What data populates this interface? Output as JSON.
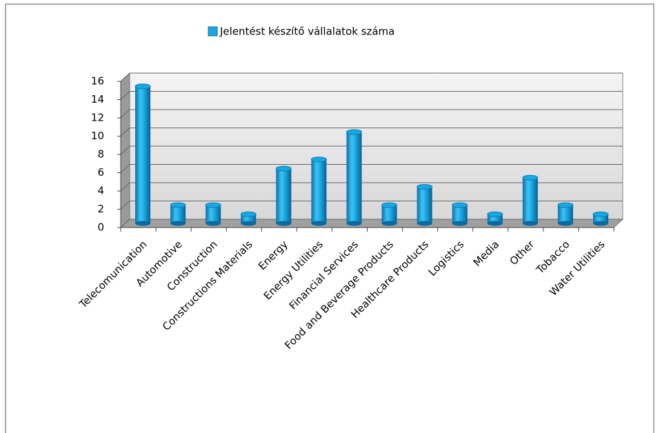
{
  "chart_data": {
    "type": "bar",
    "legend": "Jelentést készítő vállalatok száma",
    "categories": [
      "Telecomunication",
      "Automotive",
      "Construction",
      "Constructions Materials",
      "Energy",
      "Energy Utilities",
      "Financial Services",
      "Food and Beverage Products",
      "Healthcare Products",
      "Logistics",
      "Media",
      "Other",
      "Tobacco",
      "Water Utilities"
    ],
    "values": [
      15,
      2,
      2,
      1,
      6,
      7,
      10,
      2,
      4,
      2,
      1,
      5,
      2,
      1
    ],
    "color": "#1aa7e0",
    "ylim": [
      0,
      16
    ],
    "yticks": [
      0,
      2,
      4,
      6,
      8,
      10,
      12,
      14,
      16
    ],
    "grid": true,
    "legend_position": "top"
  }
}
